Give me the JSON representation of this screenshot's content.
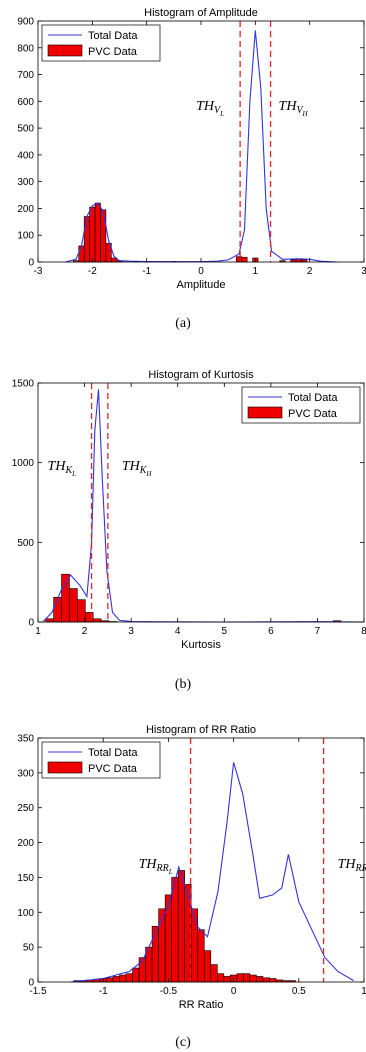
{
  "chart_data": [
    {
      "type": "bar",
      "caption": "(a)",
      "title": "Histogram of Amplitude",
      "xlabel": "Amplitude",
      "ylabel": "",
      "xlim": [
        -3,
        3
      ],
      "ylim": [
        0,
        900
      ],
      "xticks": [
        "-3",
        "-2",
        "-1",
        "0",
        "1",
        "2",
        "3"
      ],
      "yticks": [
        "0",
        "100",
        "200",
        "300",
        "400",
        "500",
        "600",
        "700",
        "800",
        "900"
      ],
      "legend": {
        "position": "top-left",
        "entries": [
          "Total Data",
          "PVC Data"
        ]
      },
      "colors": {
        "total": "#3333dd",
        "pvc": "#ee0000",
        "threshold": "#ee2222"
      },
      "thresholds": [
        {
          "x": 0.72,
          "label": "TH",
          "sub": "V",
          "subsub": "L"
        },
        {
          "x": 1.28,
          "label": "TH",
          "sub": "V",
          "subsub": "H"
        }
      ],
      "bin_width": 0.1,
      "series": [
        {
          "name": "PVC Data",
          "kind": "bar",
          "x": [
            -2.3,
            -2.2,
            -2.1,
            -2.0,
            -1.9,
            -1.8,
            -1.7,
            -1.6,
            -1.5,
            -1.2,
            -1.0,
            -0.5,
            0.7,
            0.8,
            1.0,
            1.5,
            1.7,
            1.8,
            1.9
          ],
          "y": [
            5,
            60,
            170,
            205,
            220,
            195,
            70,
            15,
            5,
            2,
            2,
            2,
            20,
            18,
            15,
            5,
            8,
            10,
            8
          ]
        },
        {
          "name": "Total Data",
          "kind": "line",
          "x": [
            -2.5,
            -2.3,
            -2.2,
            -2.1,
            -2.0,
            -1.9,
            -1.8,
            -1.7,
            -1.6,
            -1.5,
            -1.3,
            -1.0,
            -0.5,
            0.0,
            0.3,
            0.5,
            0.7,
            0.8,
            0.9,
            1.0,
            1.1,
            1.2,
            1.3,
            1.5,
            1.8,
            2.0,
            2.2,
            2.5
          ],
          "y": [
            0,
            10,
            60,
            170,
            210,
            220,
            190,
            80,
            20,
            5,
            3,
            2,
            1,
            1,
            3,
            8,
            30,
            120,
            600,
            865,
            650,
            200,
            40,
            10,
            12,
            10,
            3,
            0
          ]
        }
      ]
    },
    {
      "type": "bar",
      "caption": "(b)",
      "title": "Histogram of Kurtosis",
      "xlabel": "Kurtosis",
      "ylabel": "",
      "xlim": [
        1,
        8
      ],
      "ylim": [
        0,
        1500
      ],
      "xticks": [
        "1",
        "2",
        "3",
        "4",
        "5",
        "6",
        "7",
        "8"
      ],
      "yticks": [
        "0",
        "500",
        "1000",
        "1500"
      ],
      "legend": {
        "position": "top-right",
        "entries": [
          "Total Data",
          "PVC Data"
        ]
      },
      "colors": {
        "total": "#3333dd",
        "pvc": "#ee0000",
        "threshold": "#ee2222"
      },
      "thresholds": [
        {
          "x": 2.15,
          "label": "TH",
          "sub": "K",
          "subsub": "L"
        },
        {
          "x": 2.5,
          "label": "TH",
          "sub": "K",
          "subsub": "H"
        }
      ],
      "bin_width": 0.17,
      "series": [
        {
          "name": "PVC Data",
          "kind": "bar",
          "x": [
            1.25,
            1.42,
            1.59,
            1.76,
            1.93,
            2.1,
            2.27,
            2.44,
            2.61,
            7.42
          ],
          "y": [
            20,
            155,
            300,
            210,
            140,
            60,
            20,
            8,
            3,
            8
          ]
        },
        {
          "name": "Total Data",
          "kind": "line",
          "x": [
            1.1,
            1.3,
            1.5,
            1.7,
            1.9,
            2.05,
            2.15,
            2.22,
            2.3,
            2.38,
            2.48,
            2.6,
            2.75,
            3.0,
            3.5,
            5.0,
            7.0,
            8.0
          ],
          "y": [
            0,
            60,
            200,
            295,
            230,
            160,
            500,
            1200,
            1460,
            900,
            320,
            60,
            10,
            3,
            1,
            0,
            2,
            0
          ]
        }
      ]
    },
    {
      "type": "bar",
      "caption": "(c)",
      "title": "Histogram of RR Ratio",
      "xlabel": "RR Ratio",
      "ylabel": "",
      "xlim": [
        -1.5,
        1
      ],
      "ylim": [
        0,
        350
      ],
      "xticks": [
        "-1.5",
        "-1",
        "-0.5",
        "0",
        "0.5",
        "1"
      ],
      "yticks": [
        "0",
        "50",
        "100",
        "150",
        "200",
        "250",
        "300",
        "350"
      ],
      "legend": {
        "position": "top-left",
        "entries": [
          "Total Data",
          "PVC Data"
        ]
      },
      "colors": {
        "total": "#3333dd",
        "pvc": "#ee0000",
        "threshold": "#ee2222"
      },
      "thresholds": [
        {
          "x": -0.33,
          "label": "TH",
          "sub": "RR",
          "subsub": "L"
        },
        {
          "x": 0.69,
          "label": "TH",
          "sub": "RR",
          "subsub": "H"
        }
      ],
      "bin_width": 0.05,
      "series": [
        {
          "name": "PVC Data",
          "kind": "bar",
          "x": [
            -1.2,
            -1.15,
            -1.1,
            -1.05,
            -1.0,
            -0.95,
            -0.9,
            -0.85,
            -0.8,
            -0.75,
            -0.7,
            -0.65,
            -0.6,
            -0.55,
            -0.5,
            -0.45,
            -0.4,
            -0.35,
            -0.3,
            -0.25,
            -0.2,
            -0.15,
            -0.1,
            -0.05,
            0.0,
            0.05,
            0.1,
            0.15,
            0.2,
            0.25,
            0.3,
            0.35,
            0.4,
            0.45
          ],
          "y": [
            2,
            2,
            3,
            4,
            5,
            6,
            8,
            10,
            12,
            20,
            35,
            50,
            80,
            105,
            125,
            150,
            160,
            140,
            105,
            75,
            45,
            25,
            12,
            8,
            10,
            12,
            12,
            10,
            8,
            6,
            5,
            3,
            2,
            2
          ]
        },
        {
          "name": "Total Data",
          "kind": "line",
          "x": [
            -1.25,
            -1.0,
            -0.9,
            -0.8,
            -0.7,
            -0.6,
            -0.5,
            -0.42,
            -0.35,
            -0.28,
            -0.2,
            -0.12,
            -0.05,
            0.0,
            0.07,
            0.15,
            0.2,
            0.3,
            0.37,
            0.42,
            0.5,
            0.6,
            0.7,
            0.8,
            0.92
          ],
          "y": [
            0,
            5,
            10,
            15,
            30,
            70,
            110,
            165,
            125,
            80,
            65,
            130,
            230,
            315,
            270,
            180,
            120,
            125,
            135,
            183,
            115,
            75,
            35,
            15,
            2
          ]
        }
      ]
    }
  ]
}
